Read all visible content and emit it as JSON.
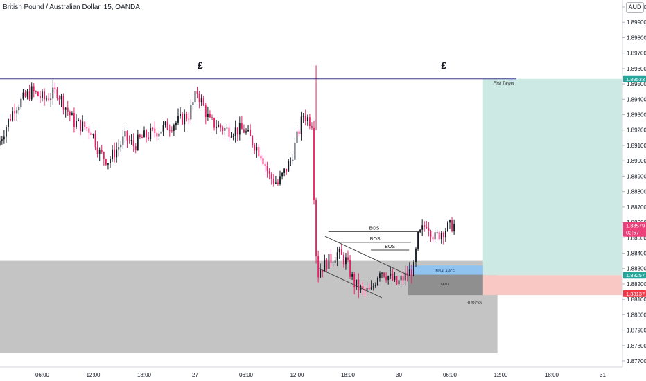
{
  "header": {
    "title": "British Pound / Australian Dollar, 15, OANDA"
  },
  "price_scale": {
    "currency": "AUD"
  },
  "colors": {
    "bull": "#131722",
    "bear": "#e91e63",
    "target_zone": "#cce9e4",
    "stop_zone": "#f9c8c4",
    "poi_zone": "#c4c4c4",
    "lzdz_zone": "#8f8f8f",
    "fvg_zone": "#90c3f0",
    "resistance_line": "#3f3a8c",
    "badge_target": "#26a69a",
    "badge_current": "#ec407a",
    "badge_entry": "#26a69a",
    "badge_stop": "#f23645"
  },
  "chart_data": {
    "type": "candlestick",
    "title": "British Pound / Australian Dollar, 15, OANDA",
    "ylim": [
      1.8765,
      1.901
    ],
    "y_ticks": [
      "1.90000",
      "1.89900",
      "1.89800",
      "1.89700",
      "1.89600",
      "1.89500",
      "1.89400",
      "1.89300",
      "1.89200",
      "1.89100",
      "1.89000",
      "1.88900",
      "1.88800",
      "1.88700",
      "1.88600",
      "1.88500",
      "1.88400",
      "1.88300",
      "1.88200",
      "1.88100",
      "1.88000",
      "1.87900",
      "1.87800",
      "1.87700"
    ],
    "x_ticks": [
      {
        "label": "06:00",
        "hours": 6
      },
      {
        "label": "12:00",
        "hours": 12
      },
      {
        "label": "18:00",
        "hours": 18
      },
      {
        "label": "27",
        "hours": 24
      },
      {
        "label": "06:00",
        "hours": 30
      },
      {
        "label": "12:00",
        "hours": 36
      },
      {
        "label": "18:00",
        "hours": 42
      },
      {
        "label": "30",
        "hours": 48
      },
      {
        "label": "06:00",
        "hours": 54
      },
      {
        "label": "12:00",
        "hours": 60
      },
      {
        "label": "18:00",
        "hours": 66
      },
      {
        "label": "31",
        "hours": 72
      }
    ],
    "x_range_hours": [
      1,
      74
    ],
    "ohlc_anchors": [
      [
        1.0,
        1.891
      ],
      [
        3.0,
        1.8935
      ],
      [
        5.0,
        1.8945
      ],
      [
        6.5,
        1.894
      ],
      [
        8.0,
        1.8945
      ],
      [
        9.0,
        1.8935
      ],
      [
        10.0,
        1.8925
      ],
      [
        12.0,
        1.892
      ],
      [
        13.0,
        1.8905
      ],
      [
        14.0,
        1.89
      ],
      [
        16.0,
        1.8915
      ],
      [
        17.0,
        1.891
      ],
      [
        18.0,
        1.8915
      ],
      [
        20.0,
        1.892
      ],
      [
        22.0,
        1.8925
      ],
      [
        23.5,
        1.893
      ],
      [
        24.5,
        1.8945
      ],
      [
        26.0,
        1.8925
      ],
      [
        28.0,
        1.892
      ],
      [
        30.0,
        1.892
      ],
      [
        32.0,
        1.8905
      ],
      [
        33.0,
        1.889
      ],
      [
        34.0,
        1.8885
      ],
      [
        35.5,
        1.89
      ],
      [
        37.0,
        1.893
      ],
      [
        38.0,
        1.8925
      ],
      [
        38.3,
        1.887
      ],
      [
        38.6,
        1.884
      ],
      [
        39.0,
        1.883
      ],
      [
        40.0,
        1.8835
      ],
      [
        41.0,
        1.884
      ],
      [
        42.0,
        1.8835
      ],
      [
        43.0,
        1.882
      ],
      [
        44.0,
        1.8815
      ],
      [
        45.0,
        1.8815
      ],
      [
        46.0,
        1.883
      ],
      [
        47.0,
        1.8825
      ],
      [
        48.0,
        1.882
      ],
      [
        49.0,
        1.8825
      ],
      [
        50.0,
        1.883
      ],
      [
        50.5,
        1.885
      ],
      [
        51.5,
        1.886
      ],
      [
        52.5,
        1.885
      ],
      [
        53.5,
        1.8855
      ],
      [
        54.5,
        1.8858
      ]
    ],
    "current_price": "1.88579",
    "countdown": "02:57",
    "first_target_price": "1.89533",
    "entry_price": "1.88257",
    "stop_price": "1.88137",
    "annotations": {
      "pound_label": "£",
      "first_target": "First Target",
      "bos": "BOS",
      "imbalance": "IMBALANCE",
      "lzdz": "LAsD",
      "poi": "4HR POI"
    }
  }
}
